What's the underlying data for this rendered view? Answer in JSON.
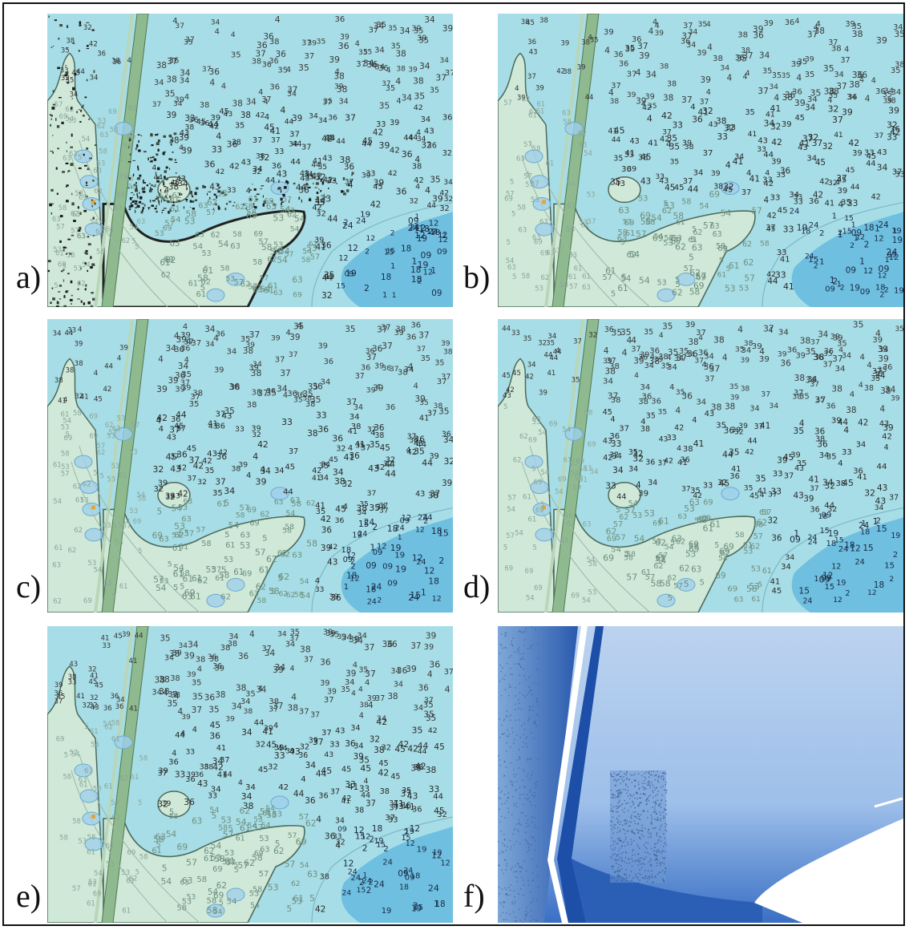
{
  "figure": {
    "panels": [
      {
        "id": "a",
        "label": "a)",
        "kind": "chart",
        "variant": "noisy"
      },
      {
        "id": "b",
        "label": "b)",
        "kind": "chart",
        "variant": "smooth"
      },
      {
        "id": "c",
        "label": "c)",
        "kind": "chart",
        "variant": "smooth"
      },
      {
        "id": "d",
        "label": "d)",
        "kind": "chart",
        "variant": "smooth"
      },
      {
        "id": "e",
        "label": "e)",
        "kind": "chart",
        "variant": "smooth"
      },
      {
        "id": "f",
        "label": "f)",
        "kind": "bathymetry"
      }
    ],
    "soundings": [
      "34",
      "35",
      "36",
      "37",
      "38",
      "39",
      "4",
      "41",
      "42",
      "43",
      "44",
      "45",
      "33",
      "32"
    ],
    "shore_soundings": [
      "53",
      "54",
      "57",
      "58",
      "61",
      "62",
      "63",
      "69",
      "5"
    ],
    "deep_soundings": [
      "09",
      "15",
      "19",
      "12",
      "1",
      "2",
      "18",
      "24"
    ],
    "colors": {
      "water": "#a7dde6",
      "deep": "#6ebfe0",
      "land": "#cfe8d8",
      "road": "#8fb98f",
      "contour": "#4c6a5c",
      "bathy_light": "#c9dcf2",
      "bathy_dark": "#1e4fa8"
    }
  }
}
